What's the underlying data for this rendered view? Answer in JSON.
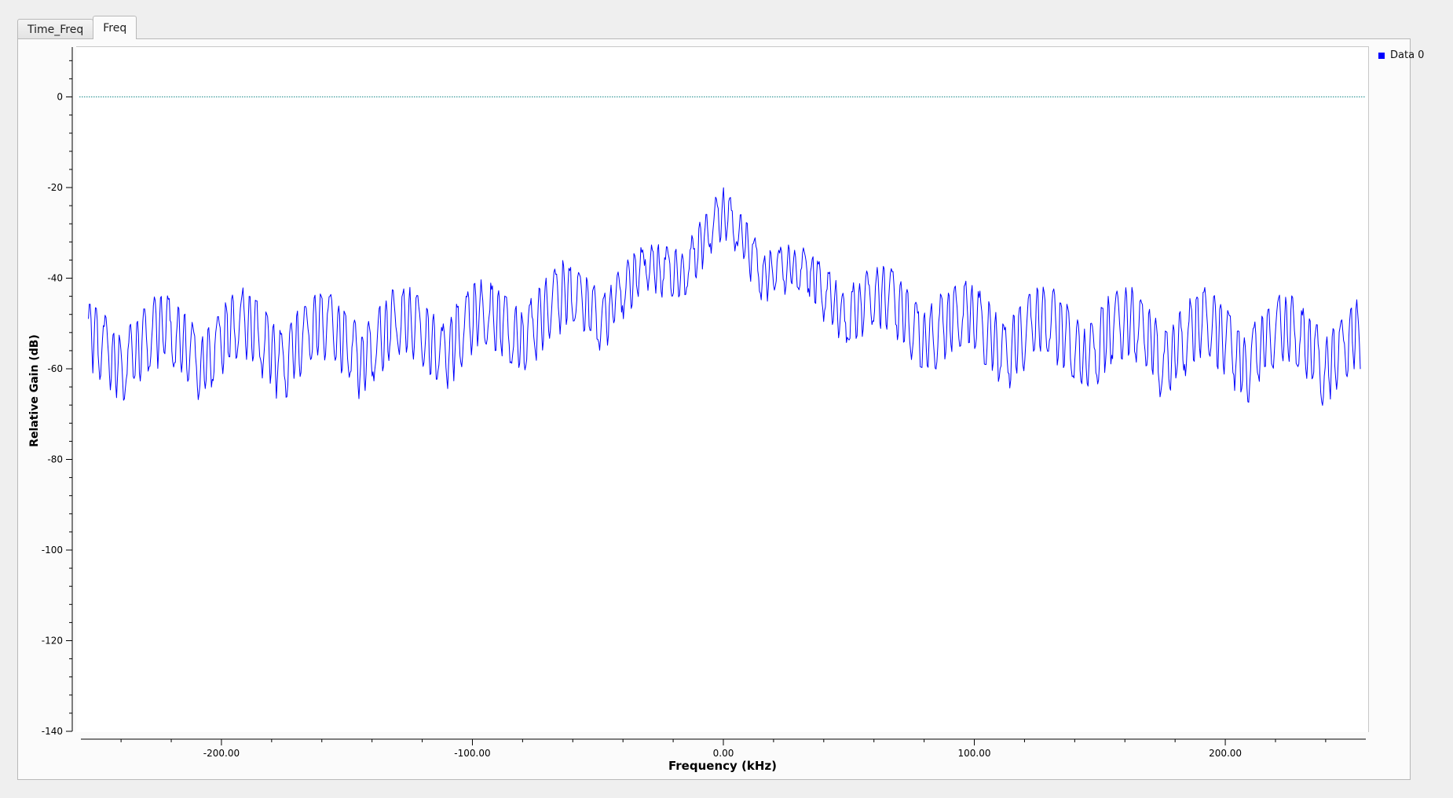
{
  "tabs": [
    {
      "label": "Time_Freq",
      "active": false
    },
    {
      "label": "Freq",
      "active": true
    }
  ],
  "colors": {
    "trace": "#0000ff",
    "reference_line": "#1a8a8a",
    "axis": "#000000"
  },
  "chart_data": {
    "type": "line",
    "title": "",
    "xlabel": "Frequency (kHz)",
    "ylabel": "Relative Gain (dB)",
    "xlim": [
      -256,
      256
    ],
    "ylim": [
      -140,
      11
    ],
    "x_ticks": [
      -200,
      -100,
      0,
      100,
      200
    ],
    "x_tick_labels": [
      "-200.00",
      "-100.00",
      "0.00",
      "100.00",
      "200.00"
    ],
    "y_ticks": [
      0,
      -20,
      -40,
      -60,
      -80,
      -100,
      -120,
      -140
    ],
    "y_tick_labels": [
      "0",
      "-20",
      "-40",
      "-60",
      "-80",
      "-100",
      "-120",
      "-140"
    ],
    "reference_line": {
      "y": 0,
      "style": "dotted"
    },
    "legend": {
      "position": "top-right",
      "entries": [
        "Data 0"
      ]
    },
    "series": [
      {
        "name": "Data 0",
        "color": "#0000ff",
        "description": "Periodic comb-like spectrum with a main lobe near 0 kHz and repeating sidelobe envelopes roughly every 32 kHz",
        "envelope_peak_x": [
          -224,
          -192,
          -160,
          -128,
          -96,
          -64,
          -32,
          0,
          32,
          64,
          96,
          128,
          160,
          192,
          224
        ],
        "envelope_peak_db": [
          -43,
          -42,
          -42,
          -41,
          -40,
          -36,
          -33,
          -20,
          -33,
          -36,
          -40,
          -41,
          -41,
          -42,
          -43
        ],
        "envelope_null_db": [
          -76,
          -75,
          -75,
          -74,
          -72,
          -68,
          -58,
          -45,
          -58,
          -68,
          -72,
          -74,
          -75,
          -75,
          -76
        ]
      }
    ]
  }
}
